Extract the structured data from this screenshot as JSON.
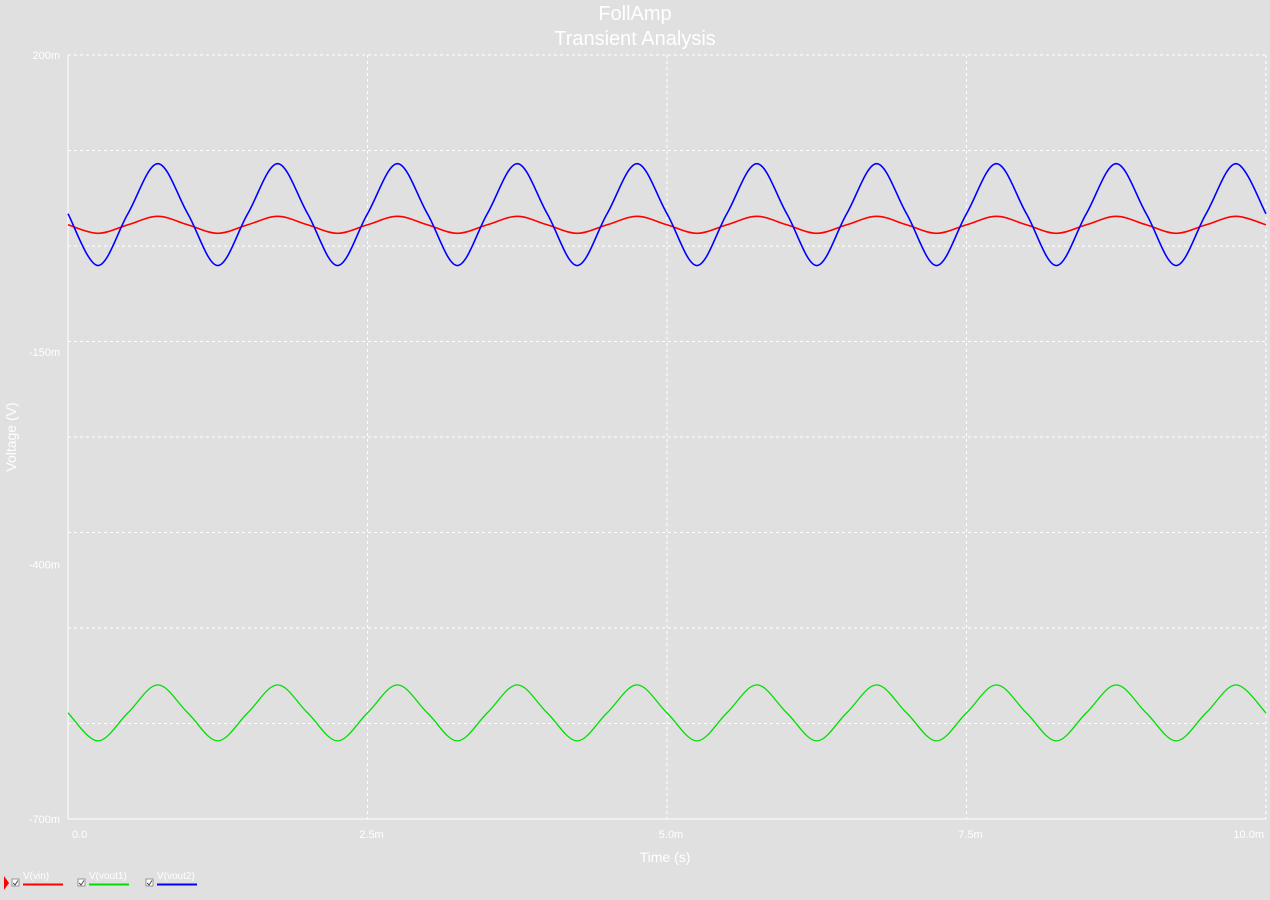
{
  "chart_data": {
    "type": "line",
    "title": "FollAmp",
    "subtitle": "Transient Analysis",
    "xlabel": "Time (s)",
    "ylabel": "Voltage (V)",
    "xlim": [
      0,
      0.01
    ],
    "ylim": [
      -0.7,
      0.2
    ],
    "grid": true,
    "legend_position": "bottom-left",
    "x_ticks": [
      {
        "value": 0,
        "label": "0.0"
      },
      {
        "value": 0.0025,
        "label": "2.5m"
      },
      {
        "value": 0.005,
        "label": "5.0m"
      },
      {
        "value": 0.0075,
        "label": "7.5m"
      },
      {
        "value": 0.01,
        "label": "10.0m"
      }
    ],
    "y_ticks": [
      {
        "value": 0.2,
        "label": "200m"
      },
      {
        "value": -0.15,
        "label": "-150m"
      },
      {
        "value": -0.4,
        "label": "-400m"
      },
      {
        "value": -0.7,
        "label": "-700m"
      }
    ],
    "series": [
      {
        "name": "V(vin)",
        "color": "#ff0000",
        "stroke_width": 1.6,
        "x": [
          0,
          0.00025,
          0.0005,
          0.00075,
          0.001,
          0.00125,
          0.0015,
          0.00175,
          0.002,
          0.00225,
          0.0025,
          0.00275,
          0.003,
          0.00325,
          0.0035,
          0.00375,
          0.004,
          0.00425,
          0.0045,
          0.00475,
          0.005,
          0.00525,
          0.0055,
          0.00575,
          0.006,
          0.00625,
          0.0065,
          0.00675,
          0.007,
          0.00725,
          0.0075,
          0.00775,
          0.008,
          0.00825,
          0.0085,
          0.00875,
          0.009,
          0.00925,
          0.0095,
          0.00975,
          0.01
        ],
        "y": [
          0.0,
          -0.01,
          0.0,
          0.01,
          0.0,
          -0.01,
          0.0,
          0.01,
          0.0,
          -0.01,
          0.0,
          0.01,
          0.0,
          -0.01,
          0.0,
          0.01,
          0.0,
          -0.01,
          0.0,
          0.01,
          0.0,
          -0.01,
          0.0,
          0.01,
          0.0,
          -0.01,
          0.0,
          0.01,
          0.0,
          -0.01,
          0.0,
          0.01,
          0.0,
          -0.01,
          0.0,
          0.01,
          0.0,
          -0.01,
          0.0,
          0.01,
          0.0
        ]
      },
      {
        "name": "V(vout1)",
        "color": "#00dd00",
        "stroke_width": 1.3,
        "x": [
          0,
          0.00025,
          0.0005,
          0.00075,
          0.001,
          0.00125,
          0.0015,
          0.00175,
          0.002,
          0.00225,
          0.0025,
          0.00275,
          0.003,
          0.00325,
          0.0035,
          0.00375,
          0.004,
          0.00425,
          0.0045,
          0.00475,
          0.005,
          0.00525,
          0.0055,
          0.00575,
          0.006,
          0.00625,
          0.0065,
          0.00675,
          0.007,
          0.00725,
          0.0075,
          0.00775,
          0.008,
          0.00825,
          0.0085,
          0.00875,
          0.009,
          0.00925,
          0.0095,
          0.00975,
          0.01
        ],
        "y": [
          -0.575,
          -0.608,
          -0.575,
          -0.542,
          -0.575,
          -0.608,
          -0.575,
          -0.542,
          -0.575,
          -0.608,
          -0.575,
          -0.542,
          -0.575,
          -0.608,
          -0.575,
          -0.542,
          -0.575,
          -0.608,
          -0.575,
          -0.542,
          -0.575,
          -0.608,
          -0.575,
          -0.542,
          -0.575,
          -0.608,
          -0.575,
          -0.542,
          -0.575,
          -0.608,
          -0.575,
          -0.542,
          -0.575,
          -0.608,
          -0.575,
          -0.542,
          -0.575,
          -0.608,
          -0.575,
          -0.542,
          -0.575
        ]
      },
      {
        "name": "V(vout2)",
        "color": "#0000ff",
        "stroke_width": 1.6,
        "x": [
          0,
          0.00025,
          0.0005,
          0.00075,
          0.001,
          0.00125,
          0.0015,
          0.00175,
          0.002,
          0.00225,
          0.0025,
          0.00275,
          0.003,
          0.00325,
          0.0035,
          0.00375,
          0.004,
          0.00425,
          0.0045,
          0.00475,
          0.005,
          0.00525,
          0.0055,
          0.00575,
          0.006,
          0.00625,
          0.0065,
          0.00675,
          0.007,
          0.00725,
          0.0075,
          0.00775,
          0.008,
          0.00825,
          0.0085,
          0.00875,
          0.009,
          0.00925,
          0.0095,
          0.00975,
          0.01
        ],
        "y": [
          0.013,
          -0.048,
          0.013,
          0.072,
          0.013,
          -0.048,
          0.013,
          0.072,
          0.013,
          -0.048,
          0.013,
          0.072,
          0.013,
          -0.048,
          0.013,
          0.072,
          0.013,
          -0.048,
          0.013,
          0.072,
          0.013,
          -0.048,
          0.013,
          0.072,
          0.013,
          -0.048,
          0.013,
          0.072,
          0.013,
          -0.048,
          0.013,
          0.072,
          0.013,
          -0.048,
          0.013,
          0.072,
          0.013,
          -0.048,
          0.013,
          0.072,
          0.013
        ]
      }
    ]
  }
}
